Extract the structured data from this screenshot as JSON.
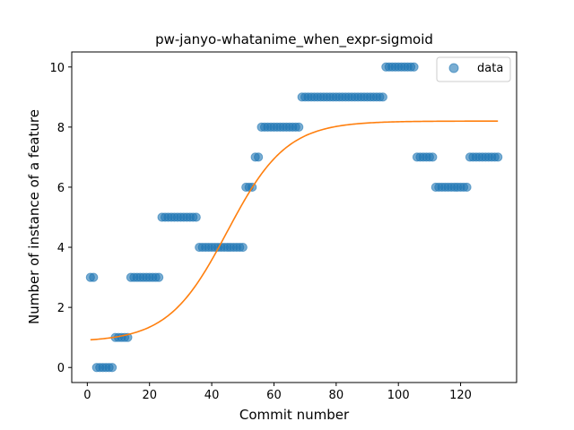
{
  "chart_data": {
    "type": "scatter",
    "title": "pw-janyo-whatanime_when_expr-sigmoid",
    "xlabel": "Commit number",
    "ylabel": "Number of instance of a feature",
    "xlim": [
      -5,
      138
    ],
    "ylim": [
      -0.5,
      10.5
    ],
    "xticks": [
      0,
      20,
      40,
      60,
      80,
      100,
      120
    ],
    "yticks": [
      0,
      2,
      4,
      6,
      8,
      10
    ],
    "grid": false,
    "legend": {
      "placement": "top-right",
      "entries": [
        "data"
      ]
    },
    "colors": {
      "data": "#1f77b4",
      "fit": "#ff7f0e"
    },
    "series": [
      {
        "name": "data",
        "kind": "scatter",
        "points": [
          [
            1,
            3
          ],
          [
            2,
            3
          ],
          [
            3,
            0
          ],
          [
            4,
            0
          ],
          [
            5,
            0
          ],
          [
            6,
            0
          ],
          [
            7,
            0
          ],
          [
            8,
            0
          ],
          [
            9,
            1
          ],
          [
            10,
            1
          ],
          [
            11,
            1
          ],
          [
            12,
            1
          ],
          [
            13,
            1
          ],
          [
            14,
            3
          ],
          [
            15,
            3
          ],
          [
            16,
            3
          ],
          [
            17,
            3
          ],
          [
            18,
            3
          ],
          [
            19,
            3
          ],
          [
            20,
            3
          ],
          [
            21,
            3
          ],
          [
            22,
            3
          ],
          [
            23,
            3
          ],
          [
            24,
            5
          ],
          [
            25,
            5
          ],
          [
            26,
            5
          ],
          [
            27,
            5
          ],
          [
            28,
            5
          ],
          [
            29,
            5
          ],
          [
            30,
            5
          ],
          [
            31,
            5
          ],
          [
            32,
            5
          ],
          [
            33,
            5
          ],
          [
            34,
            5
          ],
          [
            35,
            5
          ],
          [
            36,
            4
          ],
          [
            37,
            4
          ],
          [
            38,
            4
          ],
          [
            39,
            4
          ],
          [
            40,
            4
          ],
          [
            41,
            4
          ],
          [
            42,
            4
          ],
          [
            43,
            4
          ],
          [
            44,
            4
          ],
          [
            45,
            4
          ],
          [
            46,
            4
          ],
          [
            47,
            4
          ],
          [
            48,
            4
          ],
          [
            49,
            4
          ],
          [
            50,
            4
          ],
          [
            51,
            6
          ],
          [
            52,
            6
          ],
          [
            53,
            6
          ],
          [
            54,
            7
          ],
          [
            55,
            7
          ],
          [
            56,
            8
          ],
          [
            57,
            8
          ],
          [
            58,
            8
          ],
          [
            59,
            8
          ],
          [
            60,
            8
          ],
          [
            61,
            8
          ],
          [
            62,
            8
          ],
          [
            63,
            8
          ],
          [
            64,
            8
          ],
          [
            65,
            8
          ],
          [
            66,
            8
          ],
          [
            67,
            8
          ],
          [
            68,
            8
          ],
          [
            69,
            9
          ],
          [
            70,
            9
          ],
          [
            71,
            9
          ],
          [
            72,
            9
          ],
          [
            73,
            9
          ],
          [
            74,
            9
          ],
          [
            75,
            9
          ],
          [
            76,
            9
          ],
          [
            77,
            9
          ],
          [
            78,
            9
          ],
          [
            79,
            9
          ],
          [
            80,
            9
          ],
          [
            81,
            9
          ],
          [
            82,
            9
          ],
          [
            83,
            9
          ],
          [
            84,
            9
          ],
          [
            85,
            9
          ],
          [
            86,
            9
          ],
          [
            87,
            9
          ],
          [
            88,
            9
          ],
          [
            89,
            9
          ],
          [
            90,
            9
          ],
          [
            91,
            9
          ],
          [
            92,
            9
          ],
          [
            93,
            9
          ],
          [
            94,
            9
          ],
          [
            95,
            9
          ],
          [
            96,
            10
          ],
          [
            97,
            10
          ],
          [
            98,
            10
          ],
          [
            99,
            10
          ],
          [
            100,
            10
          ],
          [
            101,
            10
          ],
          [
            102,
            10
          ],
          [
            103,
            10
          ],
          [
            104,
            10
          ],
          [
            105,
            10
          ],
          [
            106,
            7
          ],
          [
            107,
            7
          ],
          [
            108,
            7
          ],
          [
            109,
            7
          ],
          [
            110,
            7
          ],
          [
            111,
            7
          ],
          [
            112,
            6
          ],
          [
            113,
            6
          ],
          [
            114,
            6
          ],
          [
            115,
            6
          ],
          [
            116,
            6
          ],
          [
            117,
            6
          ],
          [
            118,
            6
          ],
          [
            119,
            6
          ],
          [
            120,
            6
          ],
          [
            121,
            6
          ],
          [
            122,
            6
          ],
          [
            123,
            7
          ],
          [
            124,
            7
          ],
          [
            125,
            7
          ],
          [
            126,
            7
          ],
          [
            127,
            7
          ],
          [
            128,
            7
          ],
          [
            129,
            7
          ],
          [
            130,
            7
          ],
          [
            131,
            7
          ],
          [
            132,
            7
          ]
        ]
      },
      {
        "name": "",
        "kind": "line",
        "sigmoid": {
          "lower": 0.85,
          "upper": 8.2,
          "midpoint": 45,
          "scale": 9.5
        },
        "x_range": [
          1,
          132
        ]
      }
    ]
  }
}
